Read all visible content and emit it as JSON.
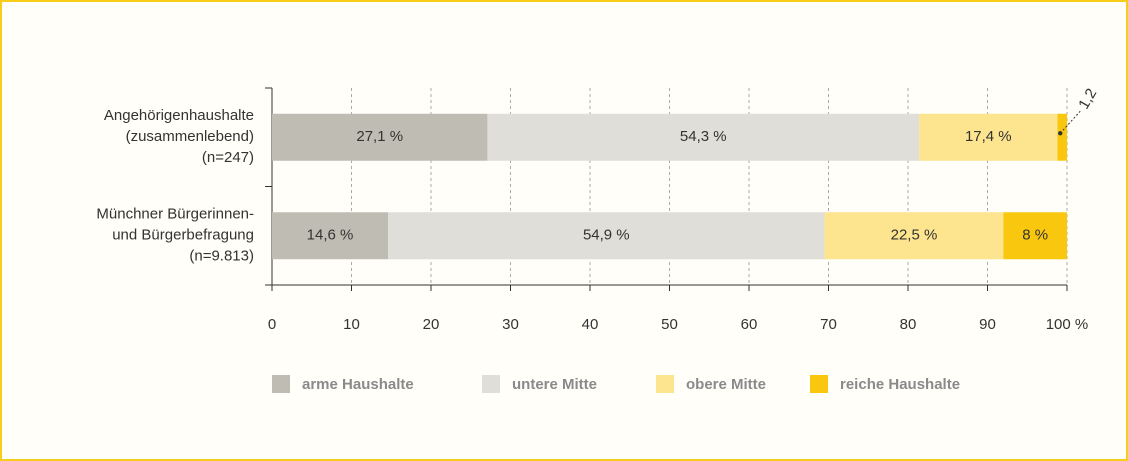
{
  "chart_data": {
    "type": "stacked-barh",
    "categories": [
      [
        "Angehörigenhaushalte",
        "(zusammenlebend)",
        "(n=247)"
      ],
      [
        "Münchner Bürgerinnen-",
        "und Bürgerbefragung",
        "(n=9.813)"
      ]
    ],
    "series": [
      {
        "name": "arme Haushalte",
        "color": "#bfbdb3",
        "values": [
          27.1,
          14.6
        ],
        "value_labels": [
          "27,1 %",
          "14,6 %"
        ]
      },
      {
        "name": "untere Mitte",
        "color": "#e0ded8",
        "values": [
          54.3,
          54.9
        ],
        "value_labels": [
          "54,3 %",
          "54,9 %"
        ]
      },
      {
        "name": "obere Mitte",
        "color": "#fde48e",
        "values": [
          17.4,
          22.5
        ],
        "value_labels": [
          "17,4 %",
          "22,5 %"
        ]
      },
      {
        "name": "reiche Haushalte",
        "color": "#f9c80e",
        "values": [
          1.2,
          8
        ],
        "value_labels": [
          "1,2",
          "8 %"
        ]
      }
    ],
    "xlim": [
      0,
      100
    ],
    "xticks": [
      0,
      10,
      20,
      30,
      40,
      50,
      60,
      70,
      80,
      90,
      {
        "value": 100,
        "label": "100 %"
      }
    ],
    "grid": true
  }
}
